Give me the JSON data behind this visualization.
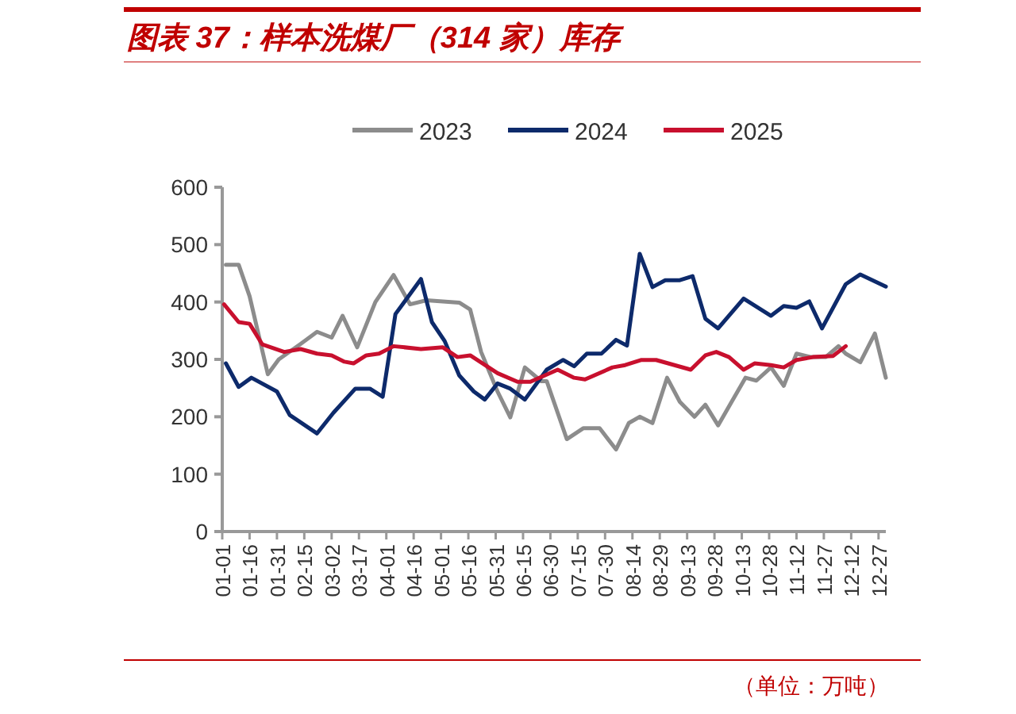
{
  "chart_data": {
    "type": "line",
    "title": "图表 37：样本洗煤厂（314 家）库存",
    "annotations": [
      "（单位：万吨）"
    ],
    "xlim": [
      "--01-01",
      "--12-31"
    ],
    "xticks": [
      {
        "value": "--01-01",
        "label": "01-01"
      },
      {
        "value": "--01-16",
        "label": "01-16"
      },
      {
        "value": "--01-31",
        "label": "01-31"
      },
      {
        "value": "--02-15",
        "label": "02-15"
      },
      {
        "value": "--03-02",
        "label": "03-02"
      },
      {
        "value": "--03-17",
        "label": "03-17"
      },
      {
        "value": "--04-01",
        "label": "04-01"
      },
      {
        "value": "--04-16",
        "label": "04-16"
      },
      {
        "value": "--05-01",
        "label": "05-01"
      },
      {
        "value": "--05-16",
        "label": "05-16"
      },
      {
        "value": "--05-31",
        "label": "05-31"
      },
      {
        "value": "--06-15",
        "label": "06-15"
      },
      {
        "value": "--06-30",
        "label": "06-30"
      },
      {
        "value": "--07-15",
        "label": "07-15"
      },
      {
        "value": "--07-30",
        "label": "07-30"
      },
      {
        "value": "--08-14",
        "label": "08-14"
      },
      {
        "value": "--08-29",
        "label": "08-29"
      },
      {
        "value": "--09-13",
        "label": "09-13"
      },
      {
        "value": "--09-28",
        "label": "09-28"
      },
      {
        "value": "--10-13",
        "label": "10-13"
      },
      {
        "value": "--10-28",
        "label": "10-28"
      },
      {
        "value": "--11-12",
        "label": "11-12"
      },
      {
        "value": "--11-27",
        "label": "11-27"
      },
      {
        "value": "--12-12",
        "label": "12-12"
      },
      {
        "value": "--12-27",
        "label": "12-27"
      }
    ],
    "ylim": [
      0,
      600
    ],
    "yticks": [
      0,
      100,
      200,
      300,
      400,
      500,
      600
    ],
    "grid": false,
    "legend": "top",
    "line_style": "solid",
    "marker": "none",
    "series": [
      {
        "name": "2023",
        "color": "#8c8c8c",
        "x": [
          "--01-03",
          "--01-10",
          "--01-16",
          "--01-26",
          "--02-01",
          "--02-13",
          "--02-22",
          "--03-02",
          "--03-08",
          "--03-16",
          "--03-26",
          "--04-05",
          "--04-14",
          "--04-23",
          "--05-11",
          "--05-17",
          "--05-23",
          "--06-01",
          "--06-08",
          "--06-16",
          "--06-25",
          "--06-28",
          "--07-09",
          "--07-18",
          "--07-27",
          "--08-05",
          "--08-12",
          "--08-18",
          "--08-25",
          "--09-02",
          "--09-09",
          "--09-17",
          "--09-23",
          "--09-30",
          "--10-15",
          "--10-21",
          "--10-29",
          "--11-05",
          "--11-12",
          "--11-20",
          "--11-28",
          "--12-05",
          "--12-09",
          "--12-17",
          "--12-25",
          "--12-31"
        ],
        "values": [
          465,
          465,
          410,
          274,
          300,
          327,
          348,
          338,
          376,
          321,
          400,
          447,
          396,
          403,
          399,
          387,
          313,
          244,
          199,
          286,
          262,
          262,
          161,
          180,
          180,
          143,
          189,
          200,
          189,
          268,
          226,
          200,
          221,
          185,
          268,
          263,
          286,
          254,
          310,
          304,
          304,
          323,
          310,
          295,
          345,
          268
        ]
      },
      {
        "name": "2024",
        "color": "#0d2a6b",
        "x": [
          "--01-03",
          "--01-10",
          "--01-17",
          "--01-31",
          "--02-07",
          "--02-22",
          "--03-03",
          "--03-15",
          "--03-23",
          "--03-30",
          "--04-06",
          "--04-20",
          "--04-26",
          "--05-03",
          "--05-11",
          "--05-19",
          "--05-25",
          "--06-01",
          "--06-08",
          "--06-16",
          "--06-28",
          "--07-07",
          "--07-13",
          "--07-20",
          "--07-28",
          "--08-05",
          "--08-11",
          "--08-18",
          "--08-25",
          "--09-01",
          "--09-09",
          "--09-16",
          "--09-23",
          "--09-30",
          "--10-14",
          "--10-29",
          "--11-05",
          "--11-12",
          "--11-19",
          "--11-26",
          "--12-09",
          "--12-17",
          "--12-31"
        ],
        "values": [
          293,
          252,
          268,
          244,
          203,
          171,
          207,
          249,
          249,
          235,
          379,
          440,
          365,
          332,
          272,
          244,
          230,
          258,
          249,
          230,
          282,
          299,
          288,
          310,
          310,
          334,
          324,
          484,
          426,
          438,
          438,
          445,
          371,
          354,
          406,
          376,
          393,
          390,
          401,
          354,
          431,
          448,
          427
        ]
      },
      {
        "name": "2025",
        "color": "#c8102e",
        "x": [
          "--01-02",
          "--01-10",
          "--01-16",
          "--01-23",
          "--02-04",
          "--02-13",
          "--02-22",
          "--03-02",
          "--03-09",
          "--03-14",
          "--03-21",
          "--03-28",
          "--04-05",
          "--04-20",
          "--05-02",
          "--05-10",
          "--05-17",
          "--06-01",
          "--06-12",
          "--06-19",
          "--07-04",
          "--07-13",
          "--07-19",
          "--08-03",
          "--08-10",
          "--08-19",
          "--08-27",
          "--09-15",
          "--09-23",
          "--09-29",
          "--10-06",
          "--10-14",
          "--10-20",
          "--10-29",
          "--11-05",
          "--11-12",
          "--11-21",
          "--12-02",
          "--12-09"
        ],
        "values": [
          396,
          365,
          362,
          326,
          313,
          318,
          310,
          307,
          296,
          293,
          307,
          310,
          323,
          318,
          321,
          304,
          307,
          276,
          261,
          261,
          282,
          268,
          265,
          286,
          290,
          299,
          299,
          282,
          307,
          313,
          304,
          282,
          293,
          290,
          286,
          299,
          304,
          306,
          323
        ]
      }
    ]
  }
}
